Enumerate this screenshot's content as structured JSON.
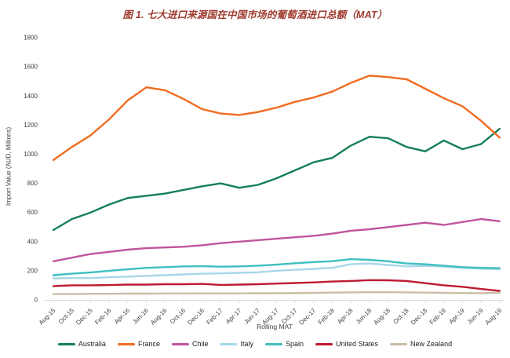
{
  "chart_data": {
    "type": "line",
    "title": "图 1. 七大进口来源国在中国市场的葡萄酒进口总额（MAT）",
    "title_color": "#9E3A2E",
    "xlabel": "Rolling MAT",
    "ylabel": "Import Value (AUD, Millions)",
    "ylim": [
      0,
      1800
    ],
    "ytick_step": 200,
    "grid": false,
    "legend_position": "bottom",
    "axis_line_color": "#D9D9D9",
    "axis_text_color": "#404040",
    "categories": [
      "Aug-15",
      "Oct-15",
      "Dec-15",
      "Feb-16",
      "Apr-16",
      "Jun-16",
      "Aug-16",
      "Oct-16",
      "Dec-16",
      "Feb-17",
      "Apr-17",
      "Jun-17",
      "Aug-17",
      "Oct-17",
      "Dec-17",
      "Feb-18",
      "Apr-18",
      "Jun-18",
      "Aug-18",
      "Oct-18",
      "Dec-18",
      "Feb-19",
      "Apr-19",
      "Jun-19",
      "Aug-19"
    ],
    "series": [
      {
        "name": "Australia",
        "color": "#148054",
        "values": [
          480,
          555,
          600,
          655,
          700,
          715,
          730,
          755,
          780,
          800,
          770,
          790,
          835,
          890,
          945,
          975,
          1060,
          1120,
          1110,
          1050,
          1020,
          1095,
          1035,
          1070,
          1175
        ]
      },
      {
        "name": "France",
        "color": "#F26B21",
        "values": [
          960,
          1050,
          1130,
          1240,
          1370,
          1460,
          1440,
          1380,
          1310,
          1280,
          1270,
          1290,
          1320,
          1360,
          1390,
          1430,
          1490,
          1540,
          1530,
          1515,
          1450,
          1385,
          1330,
          1230,
          1115
        ]
      },
      {
        "name": "Chile",
        "color": "#C0549E",
        "values": [
          265,
          290,
          315,
          330,
          345,
          355,
          360,
          365,
          375,
          390,
          400,
          410,
          420,
          430,
          440,
          455,
          475,
          485,
          500,
          515,
          530,
          515,
          535,
          555,
          540
        ]
      },
      {
        "name": "Italy",
        "color": "#A8D7E8",
        "values": [
          148,
          150,
          150,
          155,
          160,
          165,
          170,
          175,
          180,
          182,
          186,
          190,
          200,
          207,
          213,
          220,
          245,
          250,
          240,
          230,
          234,
          228,
          220,
          214,
          210
        ]
      },
      {
        "name": "Spain",
        "color": "#3FBFC1",
        "values": [
          170,
          180,
          188,
          200,
          210,
          220,
          225,
          230,
          232,
          228,
          230,
          235,
          242,
          252,
          260,
          266,
          280,
          275,
          265,
          250,
          245,
          235,
          225,
          220,
          218
        ]
      },
      {
        "name": "United States",
        "color": "#BE1A33",
        "values": [
          95,
          100,
          100,
          102,
          105,
          105,
          108,
          108,
          110,
          103,
          105,
          108,
          112,
          116,
          120,
          126,
          130,
          136,
          135,
          130,
          115,
          100,
          90,
          75,
          62
        ]
      },
      {
        "name": "New Zealand",
        "color": "#C9BEA6",
        "values": [
          40,
          40,
          42,
          42,
          43,
          43,
          44,
          44,
          45,
          45,
          45,
          46,
          46,
          47,
          48,
          50,
          52,
          53,
          53,
          52,
          50,
          48,
          47,
          46,
          50
        ]
      }
    ]
  }
}
